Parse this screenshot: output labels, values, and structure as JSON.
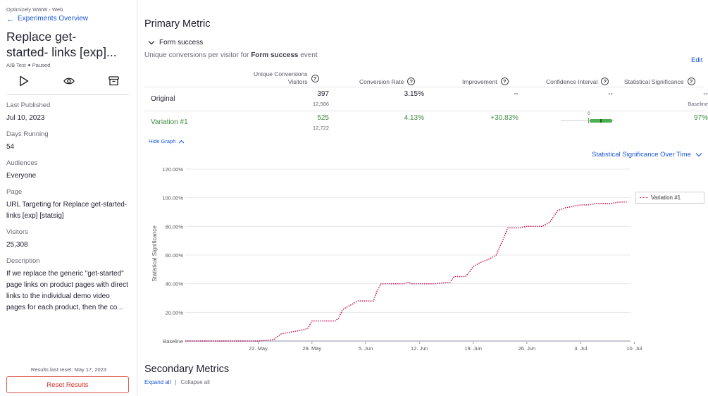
{
  "sidebar": {
    "project": "Optimizely WWW - Web",
    "back_label": "Experiments Overview",
    "title_line1": "Replace get-",
    "title_line2": "started- links [exp]...",
    "type": "A/B Test",
    "status": "Paused",
    "fields": [
      {
        "label": "Last Published",
        "value": "Jul 10, 2023"
      },
      {
        "label": "Days Running",
        "value": "54"
      },
      {
        "label": "Audiences",
        "value": "Everyone"
      },
      {
        "label": "Page",
        "value": "URL Targeting for Replace get-started- links [exp] [statsig]"
      },
      {
        "label": "Visitors",
        "value": "25,308"
      },
      {
        "label": "Description",
        "value": "If we replace the generic \"get-started\" page links on product pages with direct links to the individual demo video pages for each product, then the co..."
      }
    ],
    "reset_info": "Results last reset: May 17, 2023",
    "reset_button": "Reset Results"
  },
  "main": {
    "primary_heading": "Primary Metric",
    "metric_name": "Form success",
    "metric_desc_prefix": "Unique conversions per visitor for ",
    "metric_desc_event": "Form success",
    "metric_desc_suffix": " event",
    "edit": "Edit",
    "columns": {
      "conversions_line1": "Unique Conversions",
      "conversions_line2": "Visitors",
      "conversion_rate": "Conversion Rate",
      "improvement": "Improvement",
      "confidence": "Confidence Interval",
      "significance": "Statistical Significance"
    },
    "rows": [
      {
        "name": "Original",
        "conversions": "397",
        "visitors": "12,586",
        "rate": "3.15%",
        "improvement": "--",
        "confidence": "--",
        "significance": "--",
        "significance_sub": "Baseline"
      },
      {
        "name": "Variation #1",
        "conversions": "525",
        "visitors": "12,722",
        "rate": "4.13%",
        "improvement": "+30.83%",
        "confidence_zero": "0",
        "significance": "97%"
      }
    ],
    "hide_graph": "Hide Graph",
    "chart_selector": "Statistical Significance Over Time",
    "secondary_heading": "Secondary Metrics",
    "expand_all": "Expand all",
    "separator": "|",
    "collapse_all": "Collapse all"
  },
  "colors": {
    "accent": "#1a56db",
    "positive": "#3d8a3f",
    "danger": "#d9342b",
    "series": "#c2185b"
  },
  "chart_data": {
    "type": "line",
    "title": "Statistical Significance Over Time",
    "xlabel": "",
    "ylabel": "Statistical Significance",
    "y_ticks": [
      "Baseline",
      "20.00%",
      "40.00%",
      "60.00%",
      "80.00%",
      "100.00%",
      "120.00%"
    ],
    "ylim": [
      0,
      120
    ],
    "x_ticks": [
      {
        "label": "22. May",
        "day": 5
      },
      {
        "label": "29. May",
        "day": 12
      },
      {
        "label": "5. Jun",
        "day": 19
      },
      {
        "label": "12. Jun",
        "day": 26
      },
      {
        "label": "19. Jun",
        "day": 33
      },
      {
        "label": "26. Jun",
        "day": 40
      },
      {
        "label": "3. Jul",
        "day": 47
      },
      {
        "label": "10. Jul",
        "day": 54
      }
    ],
    "xlim": [
      -4.5,
      53.5
    ],
    "legend": [
      "Variation #1"
    ],
    "series": [
      {
        "name": "Variation #1",
        "x": [
          -4.5,
          5,
          7,
          8,
          9,
          10,
          11,
          11.5,
          12,
          15,
          15.5,
          16,
          17,
          18,
          20,
          20.5,
          21,
          24,
          24.5,
          25,
          28,
          30,
          30.5,
          31,
          32,
          32.5,
          33,
          34,
          35,
          36,
          37,
          37.5,
          39,
          40,
          41,
          41.5,
          42,
          43,
          44,
          45,
          46,
          47,
          48,
          49,
          50,
          51,
          52,
          53
        ],
        "values": [
          0,
          0,
          1,
          5,
          6,
          7,
          8,
          9,
          14,
          14,
          16,
          22,
          25,
          28,
          28,
          35,
          40,
          40,
          41,
          40,
          40,
          41,
          45,
          45,
          45,
          48,
          52,
          55,
          57,
          60,
          72,
          79,
          79,
          80,
          80,
          80,
          80,
          83,
          91,
          93,
          94,
          95,
          95,
          96,
          96,
          96,
          97,
          97
        ]
      }
    ]
  }
}
